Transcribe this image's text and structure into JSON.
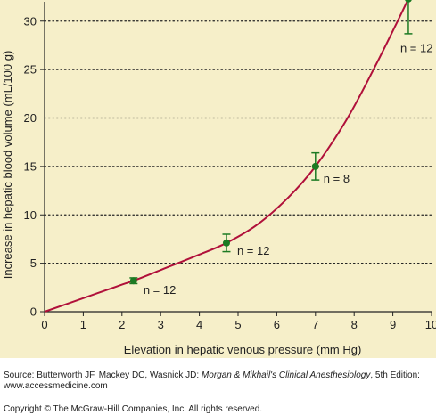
{
  "chart_data": {
    "type": "line",
    "xlabel": "Elevation in hepatic venous pressure (mm Hg)",
    "ylabel": "Increase in hepatic blood volume (mL/100 g)",
    "xlim": [
      0,
      10
    ],
    "ylim": [
      0,
      32
    ],
    "x_ticks": [
      0,
      1,
      2,
      3,
      4,
      5,
      6,
      7,
      8,
      9,
      10
    ],
    "y_ticks": [
      0,
      5,
      10,
      15,
      20,
      25,
      30
    ],
    "y_gridlines": [
      5,
      10,
      15,
      20,
      25,
      30
    ],
    "grid": "dotted horizontal",
    "background_color": "#f6efc9",
    "curve_color": "#b0103a",
    "marker_color": "#1c7a23",
    "curve": {
      "x": [
        0,
        1,
        2,
        2.3,
        3,
        4,
        4.7,
        5.5,
        6.3,
        7,
        7.8,
        8.5,
        9.1,
        9.4
      ],
      "y": [
        0,
        1.4,
        2.8,
        3.2,
        4.3,
        5.9,
        7.1,
        9.0,
        11.8,
        15.0,
        19.8,
        25.0,
        29.8,
        32.3
      ]
    },
    "points": [
      {
        "x": 2.3,
        "y": 3.2,
        "err_low": 2.9,
        "err_high": 3.5,
        "label": "n = 12"
      },
      {
        "x": 4.7,
        "y": 7.1,
        "err_low": 6.2,
        "err_high": 8.0,
        "label": "n = 12"
      },
      {
        "x": 7.0,
        "y": 15.0,
        "err_low": 13.6,
        "err_high": 16.4,
        "label": "n = 8"
      },
      {
        "x": 9.4,
        "y": 32.3,
        "err_low": 28.7,
        "err_high": 32.3,
        "label": "n = 12"
      }
    ]
  },
  "footer": {
    "source_prefix": "Source: Butterworth JF, Mackey DC, Wasnick JD: ",
    "source_title": "Morgan & Mikhail's Clinical Anesthesiology",
    "source_suffix": ", 5th Edition: www.accessmedicine.com",
    "copyright": "Copyright © The McGraw-Hill Companies, Inc. All rights reserved."
  }
}
